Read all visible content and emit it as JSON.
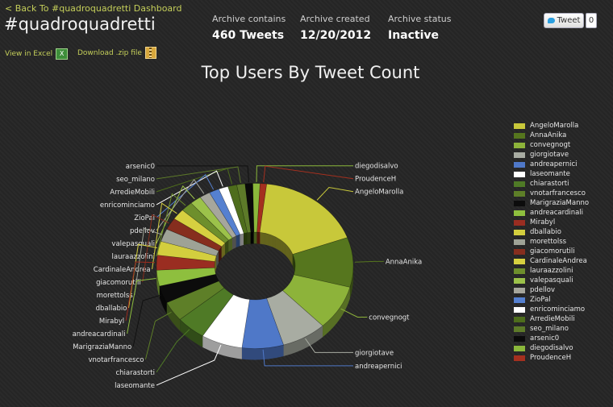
{
  "header": {
    "back_link": "< Back To #quadroquadretti Dashboard",
    "hashtag": "#quadroquadretti",
    "stats": [
      {
        "label": "Archive contains",
        "value": "460 Tweets"
      },
      {
        "label": "Archive created",
        "value": "12/20/2012"
      },
      {
        "label": "Archive status",
        "value": "Inactive"
      }
    ],
    "view_excel": "View in Excel",
    "download_zip": "Download .zip file",
    "tweet_button": "Tweet",
    "tweet_count": "0"
  },
  "chart_data": {
    "type": "pie",
    "title": "Top Users By Tweet Count",
    "legend_position": "right",
    "slices": [
      {
        "name": "AngeloMarolla",
        "value": 18.0,
        "color": "#c8c83a"
      },
      {
        "name": "AnnaAnika",
        "value": 10.0,
        "color": "#56761e"
      },
      {
        "name": "convegnogt",
        "value": 9.0,
        "color": "#8db33a"
      },
      {
        "name": "giorgiotave",
        "value": 7.6,
        "color": "#a8aca2"
      },
      {
        "name": "andreapernici",
        "value": 7.0,
        "color": "#4f78c8"
      },
      {
        "name": "laseomante",
        "value": 7.0,
        "color": "#ffffff"
      },
      {
        "name": "chiarastorti",
        "value": 5.0,
        "color": "#4f7a26"
      },
      {
        "name": "vnotarfrancesco",
        "value": 4.0,
        "color": "#5e7f28"
      },
      {
        "name": "MarigraziaManno",
        "value": 3.5,
        "color": "#0c0c0c"
      },
      {
        "name": "andreacardinali",
        "value": 3.2,
        "color": "#8ebf3e"
      },
      {
        "name": "Mirabyl",
        "value": 3.0,
        "color": "#9a2d21"
      },
      {
        "name": "dballabio",
        "value": 2.8,
        "color": "#d3ce3e"
      },
      {
        "name": "morettolss",
        "value": 2.6,
        "color": "#9ea296"
      },
      {
        "name": "giacomorutili",
        "value": 2.4,
        "color": "#862e1e"
      },
      {
        "name": "CardinaleAndrea",
        "value": 2.2,
        "color": "#d6d040"
      },
      {
        "name": "lauraazzolini",
        "value": 2.0,
        "color": "#6e8f2c"
      },
      {
        "name": "valepasquali",
        "value": 1.9,
        "color": "#9cc24a"
      },
      {
        "name": "pdellov",
        "value": 1.8,
        "color": "#a6a69c"
      },
      {
        "name": "ZioPal",
        "value": 1.7,
        "color": "#5580d0"
      },
      {
        "name": "enricominciamo",
        "value": 1.6,
        "color": "#ffffff"
      },
      {
        "name": "ArredieMobili",
        "value": 1.5,
        "color": "#4e6d1c"
      },
      {
        "name": "seo_milano",
        "value": 1.4,
        "color": "#5d7a29"
      },
      {
        "name": "arsenic0",
        "value": 1.3,
        "color": "#0a0a0a"
      },
      {
        "name": "diegodisalvo",
        "value": 1.2,
        "color": "#8bb83b"
      },
      {
        "name": "ProudenceH",
        "value": 1.1,
        "color": "#a4301f"
      }
    ]
  }
}
